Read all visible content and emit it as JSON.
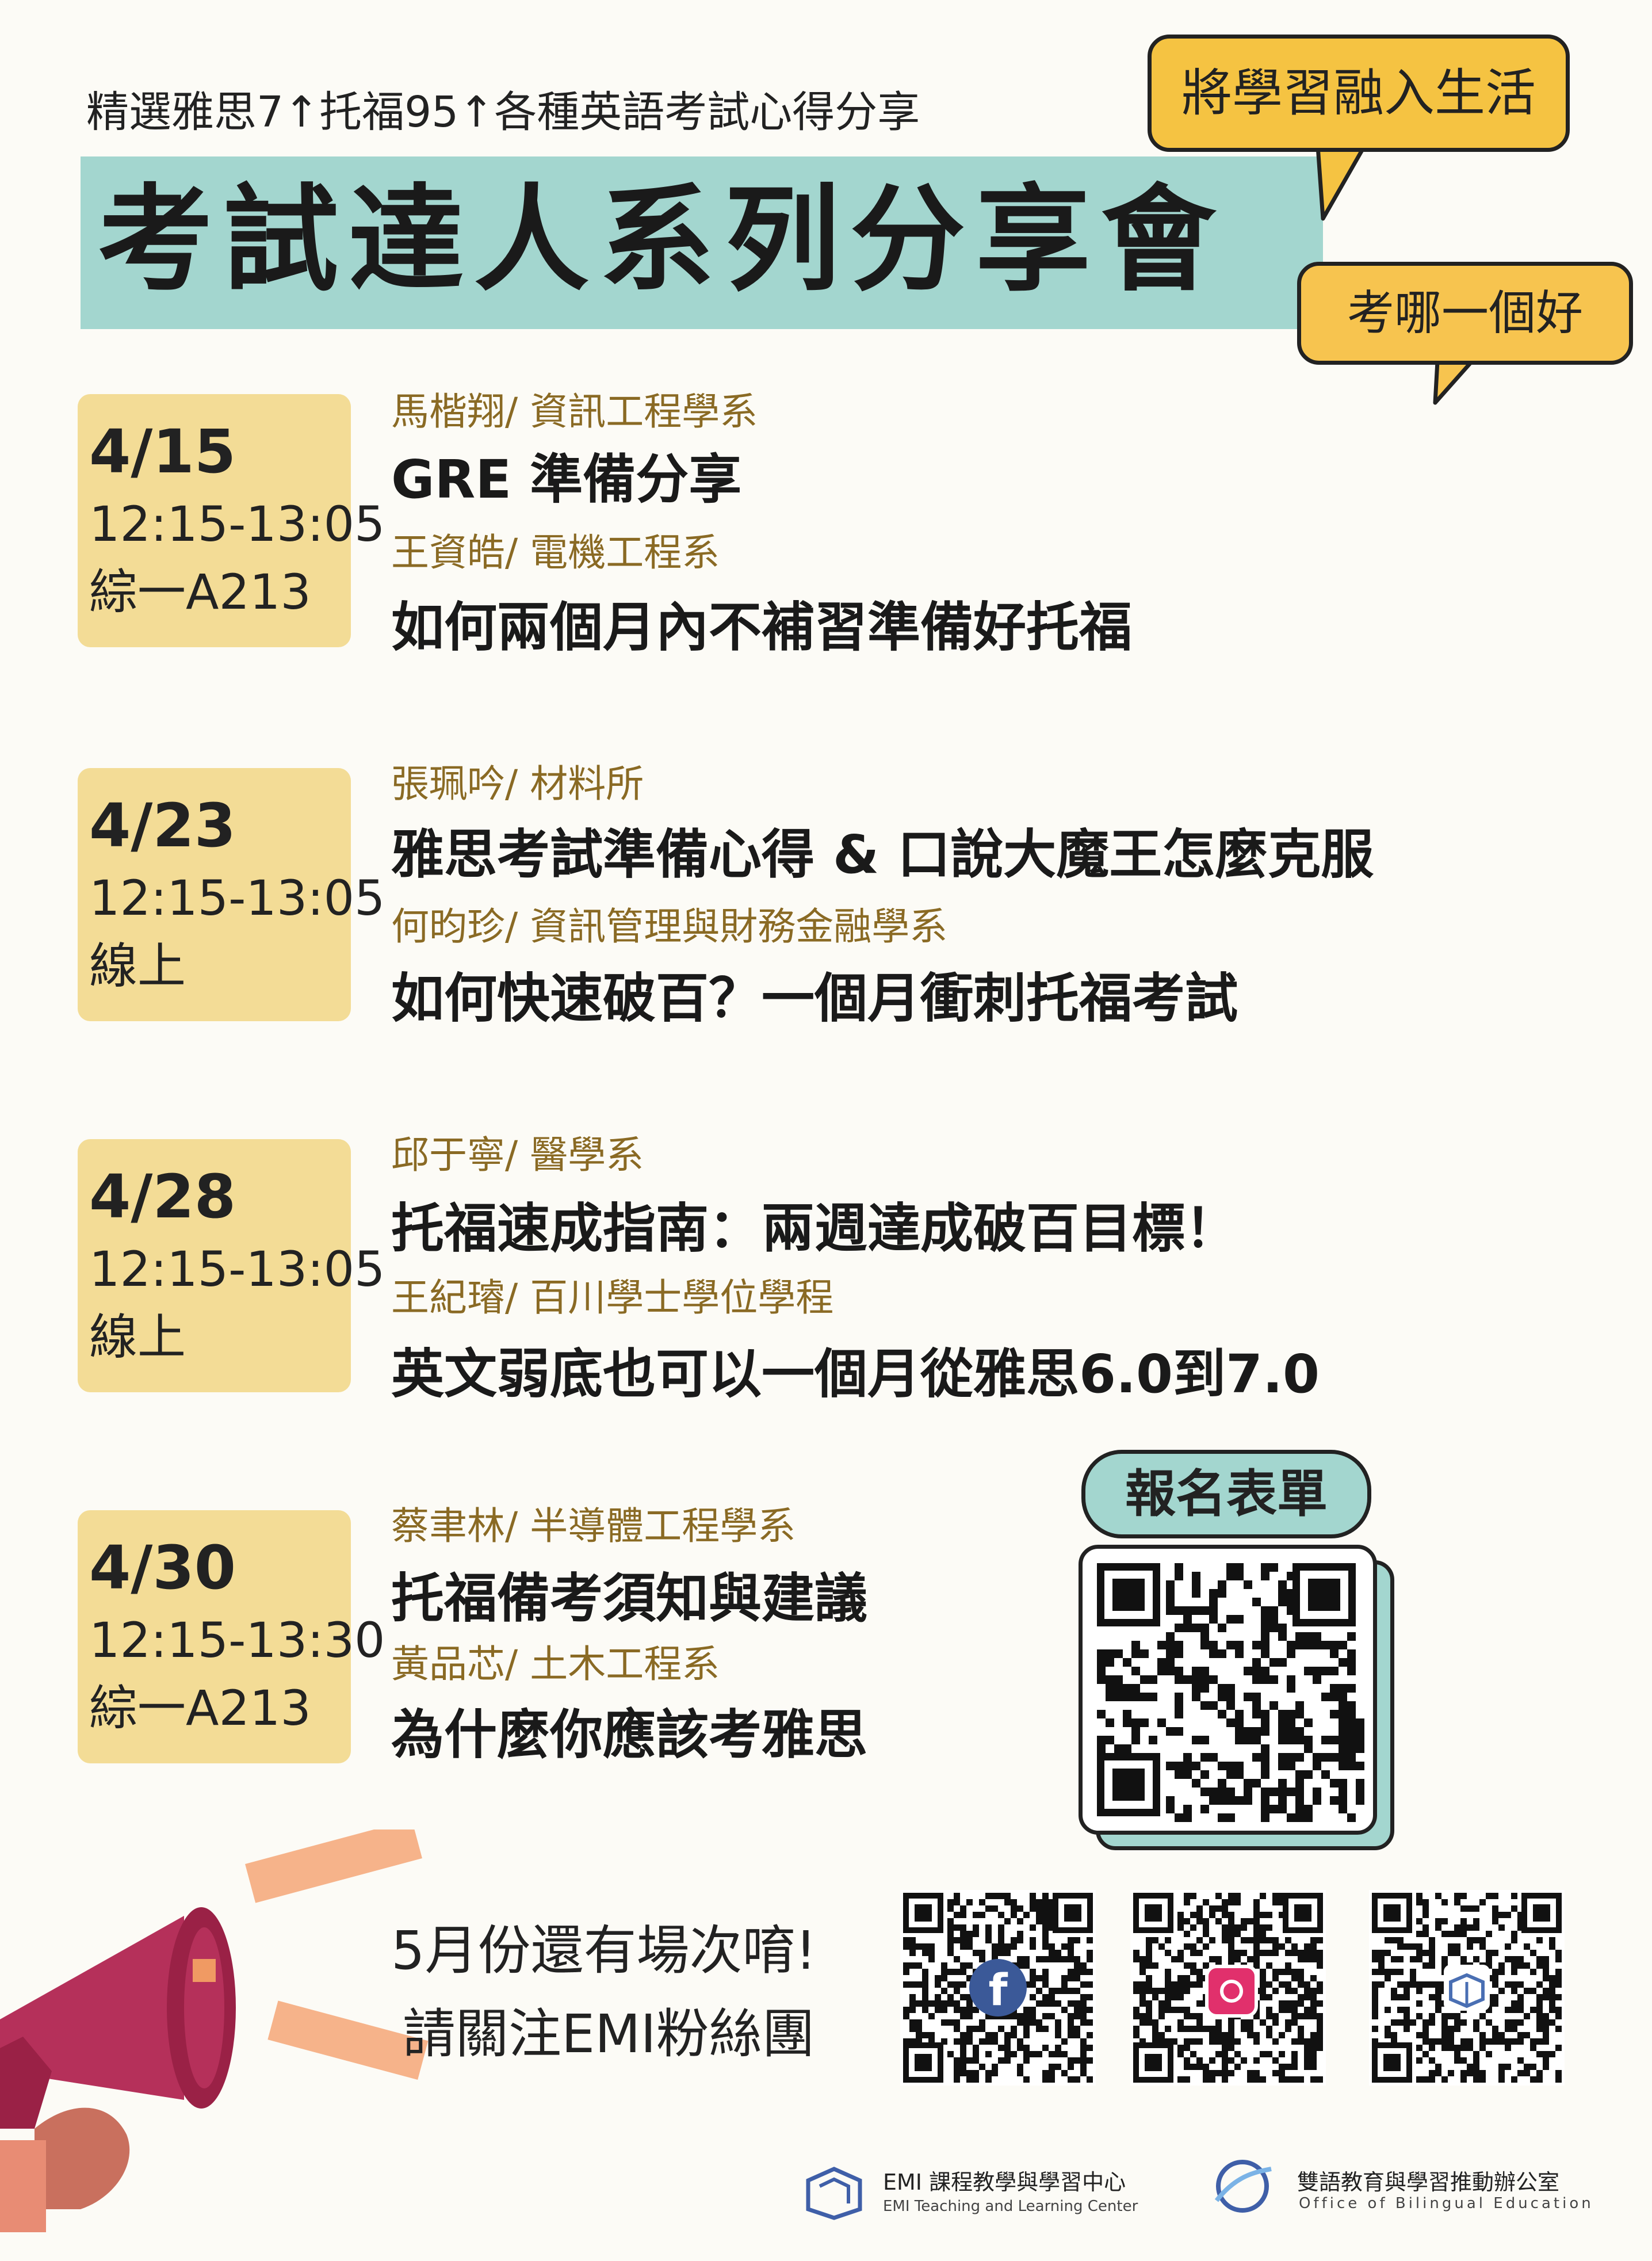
{
  "header": {
    "subtitle": "精選雅思7↑托福95↑各種英語考試心得分享",
    "title": "考試達人系列分享會",
    "bubble_main": "將學習融入生活",
    "bubble_secondary": "考哪一個好"
  },
  "sessions": [
    {
      "date": "4/15",
      "time": "12:15-13:05",
      "place": "綜一A213",
      "talks": [
        {
          "speaker": "馬楷翔/ 資訊工程學系",
          "title": "GRE 準備分享"
        },
        {
          "speaker": "王資皓/ 電機工程系",
          "title": "如何兩個月內不補習準備好托福"
        }
      ]
    },
    {
      "date": "4/23",
      "time": "12:15-13:05",
      "place": "線上",
      "talks": [
        {
          "speaker": "張珮吟/ 材料所",
          "title": "雅思考試準備心得 & 口說大魔王怎麼克服"
        },
        {
          "speaker": "何昀珍/ 資訊管理與財務金融學系",
          "title": "如何快速破百？一個月衝刺托福考試"
        }
      ]
    },
    {
      "date": "4/28",
      "time": "12:15-13:05",
      "place": "線上",
      "talks": [
        {
          "speaker": "邱于寧/ 醫學系",
          "title": "托福速成指南：兩週達成破百目標！"
        },
        {
          "speaker": "王紀璿/ 百川學士學位學程",
          "title": "英文弱底也可以一個月從雅思6.0到7.0"
        }
      ]
    },
    {
      "date": "4/30",
      "time": "12:15-13:30",
      "place": "綜一A213",
      "talks": [
        {
          "speaker": "蔡聿林/ 半導體工程學系",
          "title": "托福備考須知與建議"
        },
        {
          "speaker": "黃品芯/ 土木工程系",
          "title": "為什麼你應該考雅思"
        }
      ]
    }
  ],
  "registration": {
    "label": "報名表單"
  },
  "promo": {
    "line1": "5月份還有場次唷!",
    "line2": "請關注EMI粉絲團"
  },
  "social_qr": [
    {
      "icon": "facebook-icon",
      "color": "#3b5998"
    },
    {
      "icon": "instagram-icon",
      "color": "#e1306c"
    },
    {
      "icon": "emi-logo-icon",
      "color": "#4a6fb3"
    }
  ],
  "footer": {
    "emi_name": "EMI 課程教學與學習中心",
    "emi_sub": "EMI Teaching and Learning Center",
    "obe_name": "雙語教育與學習推動辦公室",
    "obe_sub": "Office of Bilingual Education"
  },
  "colors": {
    "teal": "#a3d6cf",
    "yellow_box": "#f3dc96",
    "bubble": "#f5c342",
    "speaker_text": "#8a6a24",
    "megaphone": "#b5305a"
  }
}
